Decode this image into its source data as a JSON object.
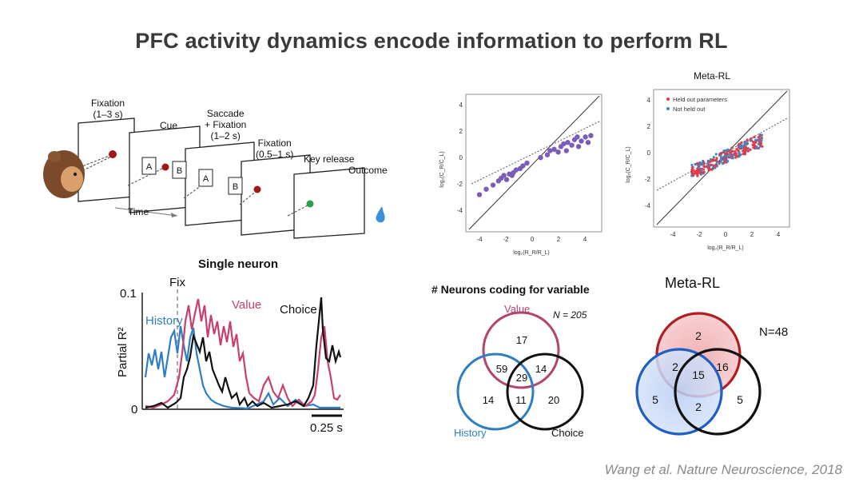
{
  "title": "PFC activity dynamics encode information to perform RL",
  "citation": "Wang et al. Nature Neuroscience, 2018",
  "task": {
    "fixation1": "Fixation\n(1–3 s)",
    "cue": "Cue",
    "saccade": "Saccade\n+ Fixation\n(1–2 s)",
    "fixation2": "Fixation\n(0.5–1 s)",
    "key_release": "Key release",
    "outcome": "Outcome",
    "time": "Time",
    "target_a": "A",
    "target_b": "B"
  },
  "single_neuron": {
    "title": "Single neuron",
    "ylabel": "Partial R²",
    "ytick_top": "0.1",
    "ytick_bottom": "0",
    "fix": "Fix",
    "history": "History",
    "value": "Value",
    "choice": "Choice",
    "scalebar": "0.25 s",
    "colors": {
      "history": "#2f7ec4",
      "value": "#c9406f",
      "choice": "#111111"
    }
  },
  "scatter_left": {
    "xlabel": "log₂(R_R/R_L)",
    "ylabel": "log₂(C_R/C_L)",
    "ticks": [
      "-4",
      "-2",
      "0",
      "2",
      "4"
    ],
    "point_color": "#7b5cb8"
  },
  "scatter_right": {
    "title": "Meta-RL",
    "xlabel": "log₂(R_R/R_L)",
    "ylabel": "log₂(C_R/C_L)",
    "ticks": [
      "-4",
      "-2",
      "0",
      "2",
      "4"
    ],
    "legend_held": "Held out parameters",
    "legend_not": "Not held out",
    "colors": {
      "held": "#e23a4a",
      "not": "#2a8fd0"
    }
  },
  "venn_left": {
    "title": "# Neurons coding for variable",
    "n": "N = 205",
    "value": "Value",
    "history": "History",
    "choice": "Choice",
    "regions": {
      "value_only": "17",
      "value_history": "59",
      "all": "29",
      "value_choice": "14",
      "history_only": "14",
      "history_choice": "11",
      "choice_only": "20"
    },
    "colors": {
      "value": "#b34470",
      "history": "#2f7ec4",
      "choice": "#111111"
    }
  },
  "venn_right": {
    "title": "Meta-RL",
    "n": "N=48",
    "regions": {
      "top_only": "2",
      "top_left": "2",
      "all": "15",
      "top_right": "16",
      "left_only": "5",
      "bottom": "2",
      "right_only": "5"
    },
    "colors": {
      "top": "#b01e24",
      "left": "#1f5fc4",
      "right": "#111111"
    }
  },
  "chart_data": [
    {
      "type": "line",
      "title": "Single neuron",
      "ylabel": "Partial R²",
      "ylim": [
        0,
        0.1
      ],
      "series": [
        {
          "name": "History"
        },
        {
          "name": "Value"
        },
        {
          "name": "Choice"
        }
      ]
    },
    {
      "type": "scatter",
      "xlabel": "log₂(R_R/R_L)",
      "ylabel": "log₂(C_R/C_L)",
      "xlim": [
        -5,
        5
      ],
      "ylim": [
        -5,
        5
      ],
      "points": [
        [
          -4,
          -2.3
        ],
        [
          -3.5,
          -1.9
        ],
        [
          -3,
          -1.6
        ],
        [
          -2.6,
          -1.3
        ],
        [
          -2.4,
          -1.1
        ],
        [
          -2.2,
          -0.9
        ],
        [
          -2,
          -1.2
        ],
        [
          -1.8,
          -0.8
        ],
        [
          -1.6,
          -0.9
        ],
        [
          -1.5,
          -0.7
        ],
        [
          -1.3,
          -0.5
        ],
        [
          -1,
          -0.4
        ],
        [
          -0.8,
          -0.2
        ],
        [
          -0.5,
          0
        ],
        [
          0.5,
          0.4
        ],
        [
          1,
          0.6
        ],
        [
          1.2,
          0.9
        ],
        [
          1.5,
          1.0
        ],
        [
          1.8,
          0.8
        ],
        [
          2,
          1.2
        ],
        [
          2.2,
          1.4
        ],
        [
          2.5,
          1.5
        ],
        [
          2.8,
          1.3
        ],
        [
          3,
          1.7
        ],
        [
          3.2,
          1.9
        ],
        [
          3.5,
          1.6
        ],
        [
          3.8,
          1.9
        ],
        [
          4,
          1.5
        ],
        [
          4.2,
          2.0
        ],
        [
          2.4,
          0.9
        ],
        [
          3.3,
          1.2
        ]
      ]
    },
    {
      "type": "scatter",
      "title": "Meta-RL",
      "xlabel": "log₂(R_R/R_L)",
      "ylabel": "log₂(C_R/C_L)",
      "xlim": [
        -5,
        5
      ],
      "ylim": [
        -5,
        5
      ],
      "series": [
        {
          "name": "Held out parameters"
        },
        {
          "name": "Not held out"
        }
      ]
    }
  ]
}
